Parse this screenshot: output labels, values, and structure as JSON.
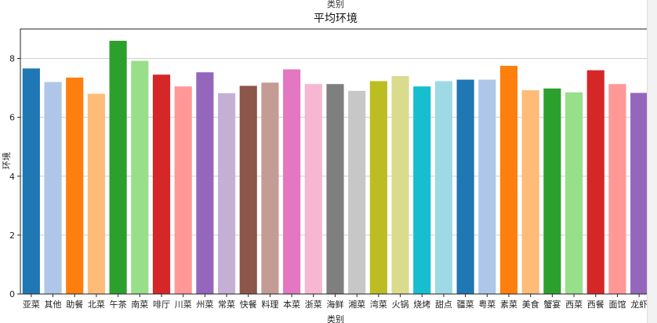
{
  "chart_data": {
    "type": "bar",
    "top_label": "类别",
    "title": "平均环境",
    "xlabel": "类别",
    "ylabel": "环境",
    "ylim": [
      0,
      9
    ],
    "yticks": [
      0,
      2,
      4,
      6,
      8
    ],
    "grid": "horizontal",
    "categories": [
      "亚菜",
      "其他",
      "助餐",
      "北菜",
      "午茶",
      "南菜",
      "啡厅",
      "川菜",
      "州菜",
      "常菜",
      "快餐",
      "料理",
      "本菜",
      "浙菜",
      "海鲜",
      "湘菜",
      "湾菜",
      "火锅",
      "烧烤",
      "甜点",
      "疆菜",
      "粤菜",
      "素菜",
      "美食",
      "蟹宴",
      "西菜",
      "西餐",
      "面馆",
      "龙虾"
    ],
    "values": [
      7.66,
      7.2,
      7.35,
      6.8,
      8.6,
      7.92,
      7.45,
      7.05,
      7.53,
      6.82,
      7.07,
      7.18,
      7.63,
      7.13,
      7.13,
      6.9,
      7.23,
      7.4,
      7.05,
      7.23,
      7.28,
      7.28,
      7.75,
      6.92,
      6.98,
      6.85,
      7.6,
      7.13,
      6.83
    ],
    "colors": [
      "#1f77b4",
      "#aec7e8",
      "#ff7f0e",
      "#ffbb78",
      "#2ca02c",
      "#98df8a",
      "#d62728",
      "#ff9896",
      "#9467bd",
      "#c5b0d5",
      "#8c564b",
      "#c49c94",
      "#e377c2",
      "#f7b6d2",
      "#7f7f7f",
      "#c7c7c7",
      "#bcbd22",
      "#dbdb8d",
      "#17becf",
      "#9edae5",
      "#1f77b4",
      "#aec7e8",
      "#ff7f0e",
      "#ffbb78",
      "#2ca02c",
      "#98df8a",
      "#d62728",
      "#ff9896",
      "#9467bd"
    ]
  }
}
